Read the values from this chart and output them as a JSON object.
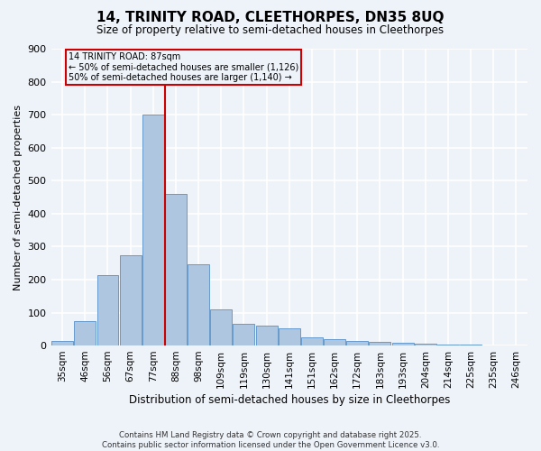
{
  "title": "14, TRINITY ROAD, CLEETHORPES, DN35 8UQ",
  "subtitle": "Size of property relative to semi-detached houses in Cleethorpes",
  "xlabel": "Distribution of semi-detached houses by size in Cleethorpes",
  "ylabel": "Number of semi-detached properties",
  "categories": [
    "35sqm",
    "46sqm",
    "56sqm",
    "67sqm",
    "77sqm",
    "88sqm",
    "98sqm",
    "109sqm",
    "119sqm",
    "130sqm",
    "141sqm",
    "151sqm",
    "162sqm",
    "172sqm",
    "183sqm",
    "193sqm",
    "204sqm",
    "214sqm",
    "225sqm",
    "235sqm",
    "246sqm"
  ],
  "values": [
    15,
    75,
    213,
    275,
    700,
    460,
    247,
    110,
    65,
    60,
    53,
    25,
    18,
    15,
    10,
    8,
    5,
    3,
    2,
    1,
    1
  ],
  "bar_color": "#aec6df",
  "bar_edge_color": "#6699cc",
  "vline_x_index": 4.525,
  "property_line_label": "14 TRINITY ROAD: 87sqm",
  "smaller_label": "← 50% of semi-detached houses are smaller (1,126)",
  "larger_label": "50% of semi-detached houses are larger (1,140) →",
  "annotation_box_color": "#cc0000",
  "vline_color": "#cc0000",
  "ylim": [
    0,
    900
  ],
  "background_color": "#eef2f9",
  "grid_color": "#ffffff",
  "footer_line1": "Contains HM Land Registry data © Crown copyright and database right 2025.",
  "footer_line2": "Contains public sector information licensed under the Open Government Licence v3.0."
}
